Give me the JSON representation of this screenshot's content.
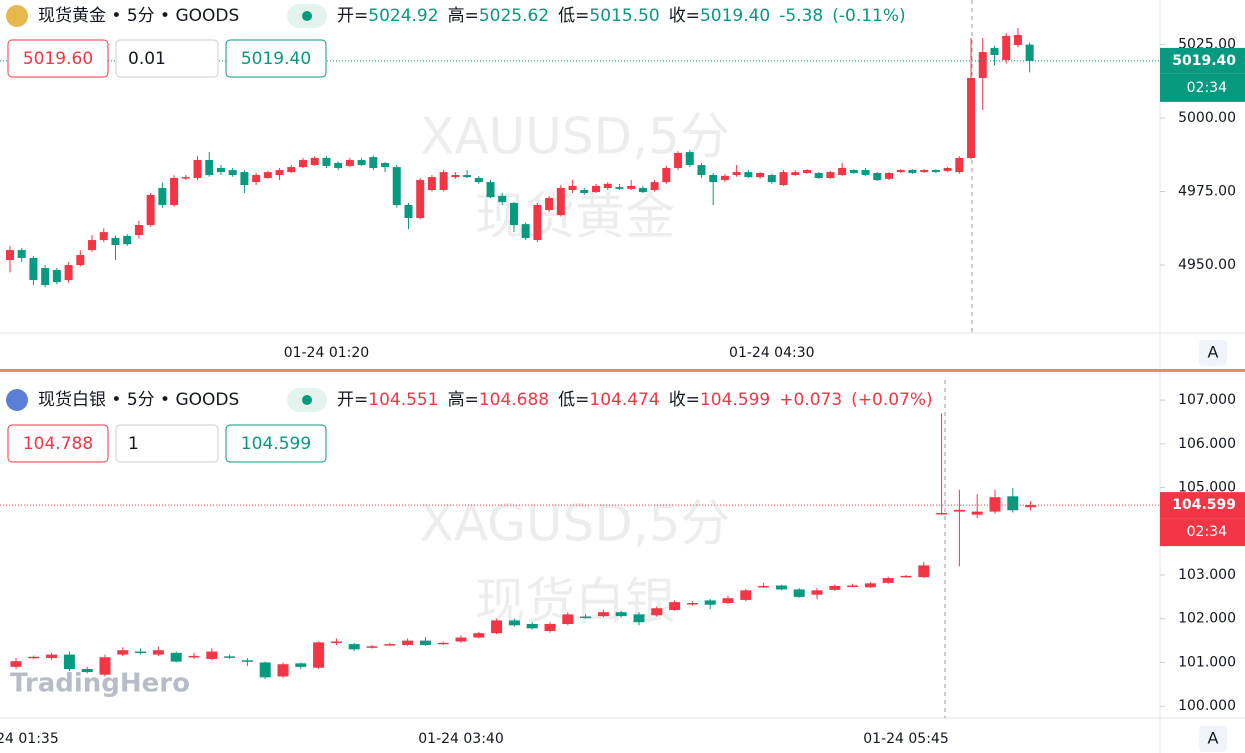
{
  "panels": [
    {
      "title": "现货黄金 • 5分 • GOODS",
      "quote": [
        {
          "label": "开=",
          "value": "5024.92"
        },
        {
          "label": "高=",
          "value": "5025.62"
        },
        {
          "label": "低=",
          "value": "5015.50"
        },
        {
          "label": "收=",
          "value": "5019.40"
        }
      ],
      "change": "-5.38",
      "change_pct": "(-0.11%)",
      "quote_color": "#089981",
      "bid": "5019.60",
      "quantity": "0.01",
      "ask": "5019.40",
      "watermark": [
        "XAUUSD,5分",
        "现货黄金"
      ],
      "last_price": "5019.40",
      "countdown": "02:34",
      "scale_button": "A"
    },
    {
      "title": "现货白银 • 5分 • GOODS",
      "quote": [
        {
          "label": "开=",
          "value": "104.551"
        },
        {
          "label": "高=",
          "value": "104.688"
        },
        {
          "label": "低=",
          "value": "104.474"
        },
        {
          "label": "收=",
          "value": "104.599"
        }
      ],
      "change": "+0.073",
      "change_pct": "(+0.07%)",
      "quote_color": "#f23645",
      "bid": "104.788",
      "quantity": "1",
      "ask": "104.599",
      "watermark": [
        "XAGUSD,5分",
        "现货白银"
      ],
      "last_price": "104.599",
      "countdown": "02:34",
      "scale_button": "A"
    }
  ],
  "logo": "TradingHero",
  "chart_data": [
    {
      "type": "candlestick",
      "up_color": "#f23645",
      "down_color": "#089981",
      "grid": false,
      "categories": [
        null,
        null,
        null,
        null,
        null,
        null,
        null,
        null,
        null,
        null,
        null,
        null,
        null,
        null,
        null,
        null,
        null,
        null,
        null,
        null,
        null,
        null,
        null,
        null,
        null,
        null,
        null,
        "01-24 01:20",
        null,
        null,
        null,
        null,
        null,
        null,
        null,
        null,
        null,
        null,
        null,
        null,
        null,
        null,
        null,
        null,
        null,
        null,
        null,
        null,
        null,
        null,
        null,
        null,
        null,
        null,
        null,
        null,
        null,
        null,
        null,
        null,
        null,
        null,
        null,
        null,
        null,
        "01-24 04:30",
        null,
        null,
        null,
        null,
        null,
        null,
        null,
        null,
        null,
        null,
        null,
        null,
        null,
        null,
        null,
        null,
        null,
        null,
        null,
        null,
        null,
        null
      ],
      "open": [
        4951.7,
        4955.1,
        4952.4,
        4949.0,
        4948.3,
        4944.9,
        4950.0,
        4955.1,
        4958.5,
        4959.2,
        4959.9,
        4960.2,
        4963.6,
        4976.2,
        4970.4,
        4979.6,
        4979.6,
        4985.7,
        4983.0,
        4982.3,
        4981.6,
        4978.2,
        4979.6,
        4980.6,
        4981.6,
        4983.3,
        4984.0,
        4986.4,
        4984.7,
        4983.7,
        4985.7,
        4986.7,
        4984.7,
        4983.3,
        4970.4,
        4966.0,
        4975.5,
        4975.5,
        4979.9,
        4980.6,
        4979.6,
        4978.2,
        4973.5,
        4971.1,
        4963.9,
        4958.5,
        4968.7,
        4967.0,
        4975.5,
        4975.5,
        4974.8,
        4976.2,
        4976.5,
        4975.9,
        4976.2,
        4975.5,
        4978.2,
        4983.0,
        4988.4,
        4984.0,
        4980.6,
        4978.9,
        4980.6,
        4981.6,
        4979.9,
        4980.6,
        4977.2,
        4980.6,
        4981.3,
        4981.3,
        4979.6,
        4980.6,
        4982.3,
        4982.3,
        4981.3,
        4979.3,
        4981.6,
        4982.3,
        4981.6,
        4982.3,
        4982.0,
        4981.6,
        4986.4,
        5013.6,
        5023.8,
        5019.7,
        5024.8,
        5024.92
      ],
      "high": [
        4956.5,
        4955.8,
        4953.0,
        4950.0,
        4949.0,
        4951.0,
        4955.0,
        4960.2,
        4962.5,
        4960.0,
        4960.5,
        4965.0,
        4974.5,
        4978.0,
        4980.5,
        4980.6,
        4987.0,
        4988.4,
        4984.0,
        4983.0,
        4982.3,
        4981.3,
        4982.0,
        4983.0,
        4984.0,
        4986.4,
        4987.0,
        4987.0,
        4985.2,
        4986.4,
        4986.4,
        4987.2,
        4985.0,
        4984.0,
        4971.1,
        4979.6,
        4980.6,
        4982.3,
        4981.6,
        4982.3,
        4980.3,
        4978.9,
        4974.5,
        4971.4,
        4964.5,
        4971.1,
        4973.5,
        4977.2,
        4979.0,
        4976.2,
        4977.6,
        4978.2,
        4977.6,
        4978.9,
        4976.9,
        4978.9,
        4983.7,
        4988.7,
        4989.1,
        4984.7,
        4981.3,
        4981.0,
        4984.0,
        4982.3,
        4981.6,
        4981.0,
        4982.3,
        4982.3,
        4982.6,
        4981.6,
        4982.0,
        4984.7,
        4982.6,
        4983.0,
        4981.6,
        4981.6,
        4982.6,
        4982.6,
        4982.6,
        4982.6,
        4983.3,
        4987.0,
        5027.2,
        5027.2,
        5024.5,
        5028.9,
        5030.6,
        5025.62
      ],
      "low": [
        4947.5,
        4951.0,
        4943.2,
        4942.5,
        4943.5,
        4944.0,
        4949.5,
        4954.5,
        4957.8,
        4951.7,
        4956.5,
        4959.0,
        4963.0,
        4969.5,
        4969.8,
        4978.9,
        4978.9,
        4980.0,
        4980.6,
        4980.0,
        4974.5,
        4977.2,
        4979.3,
        4978.9,
        4981.3,
        4983.0,
        4983.7,
        4983.0,
        4982.3,
        4983.3,
        4983.7,
        4982.3,
        4981.6,
        4969.5,
        4962.2,
        4965.5,
        4975.0,
        4975.0,
        4979.3,
        4979.6,
        4977.6,
        4972.8,
        4970.4,
        4961.2,
        4958.5,
        4957.8,
        4968.0,
        4966.5,
        4974.5,
        4973.8,
        4974.5,
        4975.5,
        4975.5,
        4975.5,
        4974.5,
        4975.0,
        4977.6,
        4982.3,
        4983.3,
        4979.6,
        4970.4,
        4978.2,
        4980.0,
        4979.6,
        4979.3,
        4977.6,
        4976.9,
        4980.3,
        4981.0,
        4979.3,
        4979.3,
        4980.3,
        4981.0,
        4980.3,
        4978.6,
        4978.9,
        4981.3,
        4981.0,
        4981.3,
        4981.3,
        4981.6,
        4981.0,
        4986.0,
        5002.7,
        5018.0,
        5018.5,
        5024.0,
        5015.5
      ],
      "close": [
        4955.1,
        4952.4,
        4944.9,
        4943.2,
        4944.2,
        4950.0,
        4953.4,
        4958.5,
        4961.2,
        4956.8,
        4957.1,
        4963.6,
        4973.8,
        4970.4,
        4979.6,
        4979.9,
        4985.7,
        4980.6,
        4981.6,
        4980.6,
        4977.2,
        4980.6,
        4981.6,
        4982.3,
        4983.3,
        4985.7,
        4986.4,
        4983.7,
        4983.0,
        4985.7,
        4984.0,
        4983.0,
        4983.3,
        4970.4,
        4966.0,
        4978.9,
        4979.9,
        4981.6,
        4980.6,
        4979.9,
        4978.2,
        4973.1,
        4971.4,
        4963.6,
        4959.2,
        4970.4,
        4972.8,
        4976.2,
        4976.9,
        4974.5,
        4976.9,
        4977.6,
        4975.9,
        4976.9,
        4974.8,
        4978.2,
        4983.0,
        4988.1,
        4984.0,
        4980.6,
        4978.2,
        4980.3,
        4981.6,
        4979.9,
        4981.3,
        4978.2,
        4981.6,
        4981.6,
        4982.3,
        4979.6,
        4981.6,
        4983.0,
        4981.3,
        4980.6,
        4978.9,
        4981.3,
        4982.3,
        4981.3,
        4982.3,
        4981.6,
        4983.0,
        4986.4,
        5013.6,
        5022.4,
        5021.4,
        5027.9,
        5028.2,
        5019.4
      ],
      "ylim": [
        4926.9,
        5040.1
      ],
      "yticks": [
        {
          "value": 5025,
          "label": "5025.00"
        },
        {
          "value": 5000,
          "label": "5000.00"
        },
        {
          "value": 4975,
          "label": "4975.00"
        },
        {
          "value": 4950,
          "label": "4950.00"
        }
      ]
    },
    {
      "type": "candlestick",
      "up_color": "#f23645",
      "down_color": "#089981",
      "grid": false,
      "categories": [
        "01-24 01:35",
        null,
        null,
        null,
        null,
        null,
        null,
        null,
        null,
        null,
        null,
        null,
        null,
        null,
        null,
        null,
        null,
        null,
        null,
        null,
        null,
        null,
        null,
        null,
        null,
        "01-24 03:40",
        null,
        null,
        null,
        null,
        null,
        null,
        null,
        null,
        null,
        null,
        null,
        null,
        null,
        null,
        null,
        null,
        null,
        null,
        null,
        null,
        null,
        null,
        null,
        null,
        "01-24 05:45",
        null,
        null,
        null,
        null,
        null,
        null,
        null
      ],
      "open": [
        100.9,
        101.1,
        101.1,
        101.18,
        100.85,
        100.72,
        101.18,
        101.25,
        101.18,
        101.22,
        101.12,
        101.08,
        101.14,
        101.05,
        101.0,
        100.68,
        100.98,
        100.88,
        101.45,
        101.42,
        101.35,
        101.4,
        101.4,
        101.5,
        101.43,
        101.48,
        101.57,
        101.67,
        101.96,
        101.88,
        101.72,
        101.88,
        102.05,
        102.06,
        102.15,
        102.1,
        102.08,
        102.2,
        102.35,
        102.42,
        102.36,
        102.43,
        102.72,
        102.76,
        102.67,
        102.55,
        102.66,
        102.75,
        102.72,
        102.82,
        102.96,
        102.95,
        104.4,
        104.45,
        104.38,
        104.45,
        104.8,
        104.551
      ],
      "high": [
        101.1,
        101.16,
        101.22,
        101.25,
        100.9,
        101.18,
        101.35,
        101.32,
        101.36,
        101.25,
        101.22,
        101.32,
        101.18,
        101.1,
        101.02,
        101.0,
        101.0,
        101.48,
        101.55,
        101.45,
        101.4,
        101.45,
        101.55,
        101.58,
        101.48,
        101.62,
        101.7,
        102.0,
        102.0,
        101.92,
        101.92,
        102.15,
        102.1,
        102.2,
        102.18,
        102.15,
        102.28,
        102.42,
        102.4,
        102.45,
        102.52,
        102.68,
        102.82,
        102.78,
        102.7,
        102.7,
        102.78,
        102.8,
        102.84,
        102.96,
        103.0,
        103.3,
        106.7,
        104.95,
        104.85,
        104.95,
        104.99,
        104.688
      ],
      "low": [
        100.85,
        101.08,
        101.06,
        100.8,
        100.75,
        100.68,
        101.15,
        101.18,
        101.15,
        101.0,
        101.08,
        101.05,
        101.08,
        100.92,
        100.62,
        100.65,
        100.85,
        100.85,
        101.4,
        101.26,
        101.32,
        101.38,
        101.38,
        101.38,
        101.4,
        101.45,
        101.55,
        101.65,
        101.82,
        101.75,
        101.68,
        101.85,
        102.0,
        102.04,
        102.03,
        101.85,
        102.05,
        102.18,
        102.3,
        102.22,
        102.34,
        102.4,
        102.7,
        102.65,
        102.48,
        102.45,
        102.64,
        102.72,
        102.7,
        102.8,
        102.94,
        102.93,
        104.38,
        103.2,
        104.3,
        104.4,
        104.43,
        104.474
      ],
      "close": [
        101.03,
        101.13,
        101.18,
        100.85,
        100.78,
        101.12,
        101.28,
        101.23,
        101.28,
        101.02,
        101.15,
        101.25,
        101.12,
        101.02,
        100.66,
        100.96,
        100.9,
        101.46,
        101.48,
        101.3,
        101.37,
        101.42,
        101.5,
        101.4,
        101.45,
        101.57,
        101.67,
        101.96,
        101.85,
        101.78,
        101.88,
        102.1,
        102.03,
        102.15,
        102.06,
        101.92,
        102.24,
        102.38,
        102.36,
        102.32,
        102.47,
        102.65,
        102.75,
        102.67,
        102.5,
        102.65,
        102.75,
        102.76,
        102.81,
        102.93,
        102.98,
        103.22,
        104.42,
        104.49,
        104.45,
        104.78,
        104.48,
        104.599
      ],
      "ylim": [
        99.73,
        107.46
      ],
      "yticks": [
        {
          "value": 107,
          "label": "107.000"
        },
        {
          "value": 106,
          "label": "106.000"
        },
        {
          "value": 105,
          "label": "105.000"
        },
        {
          "value": 103,
          "label": "103.000"
        },
        {
          "value": 102,
          "label": "102.000"
        },
        {
          "value": 101,
          "label": "101.000"
        },
        {
          "value": 100,
          "label": "100.000"
        }
      ]
    }
  ]
}
